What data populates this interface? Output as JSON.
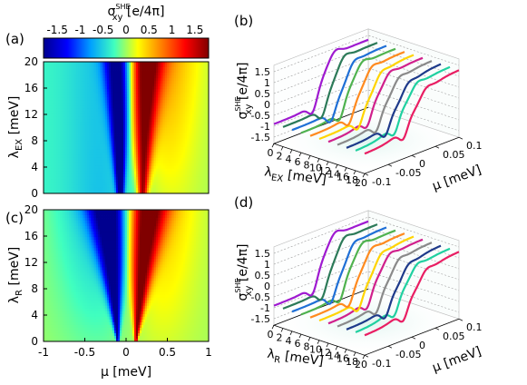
{
  "figure": {
    "panel_labels": [
      "(a)",
      "(b)",
      "(c)",
      "(d)"
    ],
    "colorbar": {
      "title_base": "σ",
      "title_sup": "SHE",
      "title_sub": "xy",
      "title_unit": " [e/4π]",
      "ticks": [
        "-1.5",
        "-1",
        "-0.5",
        "0",
        "0.5",
        "1",
        "1.5"
      ],
      "range": [
        -1.8,
        1.8
      ],
      "colors": [
        "#00008f",
        "#0000ff",
        "#00a0ff",
        "#40ffbf",
        "#ffff00",
        "#ff8000",
        "#ff0000",
        "#800000"
      ]
    },
    "series_colors": [
      "#9f1ad0",
      "#2c7a58",
      "#1f6fd6",
      "#4fb24f",
      "#ff8a1f",
      "#ffd400",
      "#d0208c",
      "#8a8a8a",
      "#1e3a8a",
      "#20d0a0",
      "#e91e63"
    ]
  },
  "chart_data": [
    {
      "type": "heatmap",
      "panel": "(a)",
      "xlabel_base": "μ",
      "xlabel_unit": " [meV]",
      "ylabel_base": "λ",
      "ylabel_sub": "EX",
      "ylabel_unit": " [meV]",
      "xlim": [
        -1,
        1
      ],
      "ylim": [
        0,
        20
      ],
      "xticks": [],
      "yticks": [
        "0",
        "4",
        "8",
        "12",
        "16",
        "20"
      ],
      "zlim": [
        -1.8,
        1.8
      ],
      "shape": "exchange: negative valley left of μ≈-0.1, positive ridge near μ≈0.2, both widening with λ_EX"
    },
    {
      "type": "heatmap",
      "panel": "(c)",
      "xlabel_base": "μ",
      "xlabel_unit": " [meV]",
      "ylabel_base": "λ",
      "ylabel_sub": "R",
      "ylabel_unit": " [meV]",
      "xlim": [
        -1,
        1
      ],
      "ylim": [
        0,
        20
      ],
      "xticks": [
        "-1",
        "-0.5",
        "0",
        "0.5",
        "1"
      ],
      "yticks": [
        "0",
        "4",
        "8",
        "12",
        "16",
        "20"
      ],
      "zlim": [
        -1.8,
        1.8
      ],
      "shape": "Rashba: V-shaped wedge opening from μ≈0 at λ_R=0, negative at μ<0, positive at μ>0"
    },
    {
      "type": "line",
      "panel": "(b)",
      "zlabel_base": "σ",
      "zlabel_sup": "SHE",
      "zlabel_sub": "xy",
      "zlabel_unit": " [e/4π]",
      "xlabel_base": "λ",
      "xlabel_sub": "EX",
      "xlabel_unit": " [meV]",
      "ylabel_base": "μ",
      "ylabel_unit": " [meV]",
      "zticks": [
        "1.5",
        "1",
        "0.5",
        "0",
        "-0.5",
        "-1",
        "-1.5"
      ],
      "xticks": [
        "0",
        "2",
        "4",
        "6",
        "8",
        "10",
        "12",
        "14",
        "16",
        "18",
        "20"
      ],
      "yticks": [
        "-0.1",
        "-0.05",
        "0",
        "0.05",
        "0.1"
      ],
      "series_lambda": [
        0,
        2,
        4,
        6,
        8,
        10,
        12,
        14,
        16,
        18,
        20
      ],
      "mu": [
        -0.1,
        0.1
      ],
      "curve": "step from about -0.9 to about 1.35 near μ≈0 with a dip and peak"
    },
    {
      "type": "line",
      "panel": "(d)",
      "zlabel_base": "σ",
      "zlabel_sup": "SHE",
      "zlabel_sub": "xy",
      "zlabel_unit": " [e/4π]",
      "xlabel_base": "λ",
      "xlabel_sub": "R",
      "xlabel_unit": " [meV]",
      "ylabel_base": "μ",
      "ylabel_unit": " [meV]",
      "zticks": [
        "1.5",
        "1",
        "0.5",
        "0",
        "-0.5",
        "-1",
        "-1.5"
      ],
      "xticks": [
        "0",
        "2",
        "4",
        "6",
        "8",
        "10",
        "12",
        "14",
        "16",
        "18",
        "20"
      ],
      "yticks": [
        "-0.1",
        "-0.05",
        "0",
        "0.05",
        "0.1"
      ],
      "series_lambda": [
        0,
        2,
        4,
        6,
        8,
        10,
        12,
        14,
        16,
        18,
        20
      ],
      "mu": [
        -0.1,
        0.1
      ],
      "curve": "step from about -0.9 to about 1.35 near μ≈0 with a dip and peak"
    }
  ]
}
